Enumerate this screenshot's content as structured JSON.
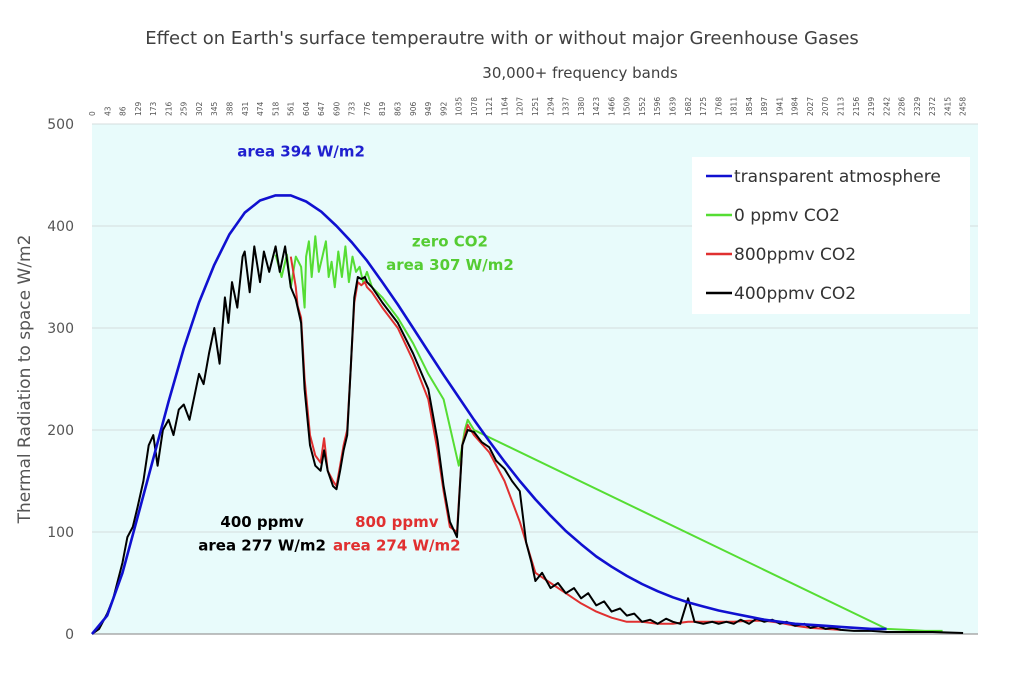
{
  "chart_data": {
    "type": "line",
    "title": "Effect on Earth's surface temperautre with or without major Greenhouse Gases",
    "x_axis_title": "30,000+ frequency bands",
    "ylabel": "Thermal Radiation to space  W/m2",
    "xlim": [
      0,
      2500
    ],
    "ylim": [
      0,
      500
    ],
    "y_ticks": [
      0,
      100,
      200,
      300,
      400,
      500
    ],
    "x_tick_labels": [
      "0",
      "43",
      "86",
      "129",
      "173",
      "216",
      "259",
      "302",
      "345",
      "388",
      "431",
      "474",
      "518",
      "561",
      "604",
      "647",
      "690",
      "733",
      "776",
      "819",
      "863",
      "906",
      "949",
      "992",
      "1035",
      "1078",
      "1121",
      "1164",
      "1207",
      "1251",
      "1294",
      "1337",
      "1380",
      "1423",
      "1466",
      "1509",
      "1552",
      "1596",
      "1639",
      "1682",
      "1725",
      "1768",
      "1811",
      "1854",
      "1897",
      "1941",
      "1984",
      "2027",
      "2070",
      "2113",
      "2156",
      "2199",
      "2242",
      "2286",
      "2329",
      "2372",
      "2415",
      "2458"
    ],
    "grid": "horizontal",
    "legend_position": "top-right",
    "background_color": "#e8fbfb",
    "series": [
      {
        "name": "transparent atmosphere",
        "color": "#1010d0",
        "points": [
          [
            0,
            0
          ],
          [
            43,
            18
          ],
          [
            86,
            60
          ],
          [
            129,
            115
          ],
          [
            173,
            172
          ],
          [
            216,
            228
          ],
          [
            259,
            280
          ],
          [
            302,
            325
          ],
          [
            345,
            362
          ],
          [
            388,
            392
          ],
          [
            431,
            413
          ],
          [
            474,
            425
          ],
          [
            518,
            430
          ],
          [
            561,
            430
          ],
          [
            604,
            424
          ],
          [
            647,
            414
          ],
          [
            690,
            400
          ],
          [
            733,
            384
          ],
          [
            776,
            366
          ],
          [
            819,
            345
          ],
          [
            863,
            323
          ],
          [
            906,
            300
          ],
          [
            949,
            277
          ],
          [
            992,
            254
          ],
          [
            1035,
            232
          ],
          [
            1078,
            210
          ],
          [
            1121,
            189
          ],
          [
            1164,
            169
          ],
          [
            1207,
            150
          ],
          [
            1251,
            132
          ],
          [
            1294,
            116
          ],
          [
            1337,
            101
          ],
          [
            1380,
            88
          ],
          [
            1423,
            76
          ],
          [
            1466,
            66
          ],
          [
            1509,
            57
          ],
          [
            1552,
            49
          ],
          [
            1596,
            42
          ],
          [
            1639,
            36
          ],
          [
            1682,
            31
          ],
          [
            1725,
            27
          ],
          [
            1768,
            23
          ],
          [
            1811,
            20
          ],
          [
            1854,
            17
          ],
          [
            1897,
            14
          ],
          [
            1941,
            12
          ],
          [
            1984,
            10
          ],
          [
            2027,
            9
          ],
          [
            2070,
            8
          ],
          [
            2113,
            7
          ],
          [
            2156,
            6
          ],
          [
            2199,
            5
          ],
          [
            2242,
            5
          ]
        ]
      },
      {
        "name": "0 ppmv CO2",
        "color": "#55dd33",
        "points": [
          [
            518,
            372
          ],
          [
            535,
            350
          ],
          [
            550,
            372
          ],
          [
            561,
            340
          ],
          [
            575,
            370
          ],
          [
            590,
            360
          ],
          [
            600,
            320
          ],
          [
            604,
            370
          ],
          [
            612,
            385
          ],
          [
            620,
            350
          ],
          [
            630,
            390
          ],
          [
            640,
            355
          ],
          [
            650,
            370
          ],
          [
            660,
            385
          ],
          [
            668,
            350
          ],
          [
            676,
            365
          ],
          [
            685,
            340
          ],
          [
            695,
            375
          ],
          [
            705,
            350
          ],
          [
            715,
            380
          ],
          [
            725,
            345
          ],
          [
            735,
            370
          ],
          [
            745,
            355
          ],
          [
            755,
            360
          ],
          [
            765,
            345
          ],
          [
            776,
            355
          ],
          [
            790,
            340
          ],
          [
            819,
            330
          ],
          [
            863,
            310
          ],
          [
            906,
            285
          ],
          [
            949,
            255
          ],
          [
            992,
            230
          ],
          [
            1035,
            165
          ],
          [
            1052,
            200
          ],
          [
            1060,
            210
          ],
          [
            1078,
            200
          ],
          [
            2242,
            5
          ],
          [
            2300,
            4
          ],
          [
            2350,
            3
          ],
          [
            2400,
            3
          ]
        ]
      },
      {
        "name": "800ppmv CO2",
        "color": "#e03030",
        "points": [
          [
            561,
            370
          ],
          [
            575,
            340
          ],
          [
            580,
            322
          ],
          [
            590,
            310
          ],
          [
            600,
            250
          ],
          [
            615,
            195
          ],
          [
            630,
            175
          ],
          [
            645,
            168
          ],
          [
            655,
            192
          ],
          [
            665,
            160
          ],
          [
            680,
            150
          ],
          [
            690,
            145
          ],
          [
            700,
            165
          ],
          [
            710,
            185
          ],
          [
            720,
            200
          ],
          [
            730,
            260
          ],
          [
            740,
            325
          ],
          [
            750,
            345
          ],
          [
            760,
            342
          ],
          [
            770,
            345
          ],
          [
            776,
            340
          ],
          [
            790,
            335
          ],
          [
            819,
            320
          ],
          [
            863,
            300
          ],
          [
            906,
            268
          ],
          [
            949,
            230
          ],
          [
            975,
            180
          ],
          [
            992,
            140
          ],
          [
            1010,
            105
          ],
          [
            1030,
            100
          ],
          [
            1045,
            185
          ],
          [
            1060,
            205
          ],
          [
            1078,
            195
          ],
          [
            1121,
            178
          ],
          [
            1164,
            150
          ],
          [
            1207,
            110
          ],
          [
            1251,
            60
          ],
          [
            1294,
            50
          ],
          [
            1337,
            40
          ],
          [
            1380,
            30
          ],
          [
            1423,
            22
          ],
          [
            1466,
            16
          ],
          [
            1509,
            12
          ],
          [
            1552,
            12
          ],
          [
            1596,
            10
          ],
          [
            1639,
            10
          ],
          [
            1682,
            12
          ],
          [
            1725,
            12
          ],
          [
            1768,
            12
          ],
          [
            1811,
            12
          ],
          [
            1854,
            13
          ],
          [
            1897,
            13
          ],
          [
            1941,
            11
          ],
          [
            1984,
            8
          ],
          [
            2027,
            6
          ],
          [
            2070,
            5
          ],
          [
            2113,
            4
          ]
        ]
      },
      {
        "name": "400ppmv CO2",
        "color": "#000000",
        "points": [
          [
            0,
            0
          ],
          [
            20,
            5
          ],
          [
            43,
            20
          ],
          [
            60,
            35
          ],
          [
            86,
            70
          ],
          [
            100,
            95
          ],
          [
            115,
            105
          ],
          [
            129,
            125
          ],
          [
            145,
            150
          ],
          [
            160,
            185
          ],
          [
            173,
            195
          ],
          [
            185,
            165
          ],
          [
            200,
            200
          ],
          [
            216,
            210
          ],
          [
            230,
            195
          ],
          [
            245,
            220
          ],
          [
            259,
            225
          ],
          [
            275,
            210
          ],
          [
            290,
            235
          ],
          [
            302,
            255
          ],
          [
            315,
            245
          ],
          [
            330,
            275
          ],
          [
            345,
            300
          ],
          [
            360,
            265
          ],
          [
            375,
            330
          ],
          [
            385,
            305
          ],
          [
            395,
            345
          ],
          [
            410,
            320
          ],
          [
            425,
            370
          ],
          [
            431,
            375
          ],
          [
            445,
            335
          ],
          [
            458,
            380
          ],
          [
            474,
            345
          ],
          [
            485,
            375
          ],
          [
            500,
            355
          ],
          [
            518,
            380
          ],
          [
            530,
            355
          ],
          [
            545,
            380
          ],
          [
            561,
            340
          ],
          [
            575,
            328
          ],
          [
            590,
            305
          ],
          [
            600,
            240
          ],
          [
            615,
            185
          ],
          [
            630,
            165
          ],
          [
            645,
            160
          ],
          [
            655,
            180
          ],
          [
            665,
            160
          ],
          [
            680,
            145
          ],
          [
            690,
            142
          ],
          [
            700,
            160
          ],
          [
            710,
            180
          ],
          [
            720,
            195
          ],
          [
            730,
            260
          ],
          [
            740,
            330
          ],
          [
            750,
            350
          ],
          [
            760,
            348
          ],
          [
            770,
            350
          ],
          [
            776,
            345
          ],
          [
            790,
            340
          ],
          [
            819,
            325
          ],
          [
            863,
            305
          ],
          [
            906,
            275
          ],
          [
            949,
            240
          ],
          [
            975,
            190
          ],
          [
            992,
            145
          ],
          [
            1010,
            110
          ],
          [
            1030,
            95
          ],
          [
            1045,
            185
          ],
          [
            1060,
            200
          ],
          [
            1078,
            198
          ],
          [
            1100,
            188
          ],
          [
            1121,
            183
          ],
          [
            1140,
            170
          ],
          [
            1164,
            162
          ],
          [
            1185,
            150
          ],
          [
            1207,
            140
          ],
          [
            1225,
            90
          ],
          [
            1240,
            70
          ],
          [
            1251,
            52
          ],
          [
            1270,
            60
          ],
          [
            1294,
            45
          ],
          [
            1315,
            50
          ],
          [
            1337,
            40
          ],
          [
            1360,
            45
          ],
          [
            1380,
            35
          ],
          [
            1400,
            40
          ],
          [
            1423,
            28
          ],
          [
            1445,
            32
          ],
          [
            1466,
            22
          ],
          [
            1490,
            25
          ],
          [
            1509,
            18
          ],
          [
            1530,
            20
          ],
          [
            1552,
            12
          ],
          [
            1575,
            14
          ],
          [
            1596,
            10
          ],
          [
            1620,
            15
          ],
          [
            1639,
            12
          ],
          [
            1660,
            10
          ],
          [
            1682,
            35
          ],
          [
            1700,
            12
          ],
          [
            1725,
            10
          ],
          [
            1750,
            12
          ],
          [
            1768,
            10
          ],
          [
            1790,
            12
          ],
          [
            1811,
            10
          ],
          [
            1830,
            14
          ],
          [
            1854,
            10
          ],
          [
            1875,
            15
          ],
          [
            1897,
            12
          ],
          [
            1920,
            14
          ],
          [
            1941,
            10
          ],
          [
            1960,
            12
          ],
          [
            1984,
            8
          ],
          [
            2010,
            10
          ],
          [
            2027,
            6
          ],
          [
            2050,
            8
          ],
          [
            2070,
            5
          ],
          [
            2090,
            6
          ],
          [
            2113,
            4
          ],
          [
            2150,
            3
          ],
          [
            2199,
            3
          ],
          [
            2242,
            2
          ],
          [
            2300,
            2
          ],
          [
            2372,
            2
          ],
          [
            2458,
            1
          ]
        ]
      }
    ],
    "annotations": [
      {
        "text": "area 394 W/m2",
        "color": "#1f1fcf",
        "x": 590,
        "y": 468
      },
      {
        "text": "zero CO2",
        "color": "#55cc33",
        "x": 1010,
        "y": 380
      },
      {
        "text": "area 307 W/m2",
        "color": "#55cc33",
        "x": 1010,
        "y": 357
      },
      {
        "text": "400 ppmv",
        "color": "#000000",
        "x": 480,
        "y": 105
      },
      {
        "text": "area 277 W/m2",
        "color": "#000000",
        "x": 480,
        "y": 82
      },
      {
        "text": "800 ppmv",
        "color": "#e03030",
        "x": 860,
        "y": 105
      },
      {
        "text": "area 274 W/m2",
        "color": "#e03030",
        "x": 860,
        "y": 82
      }
    ]
  }
}
